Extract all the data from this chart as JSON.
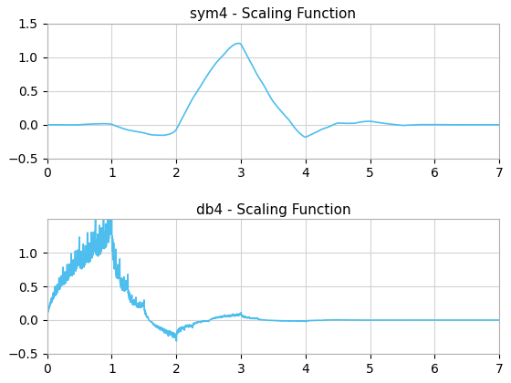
{
  "title1": "sym4 - Scaling Function",
  "title2": "db4 - Scaling Function",
  "xlim": [
    0,
    7
  ],
  "ylim1": [
    -0.5,
    1.5
  ],
  "ylim2": [
    -0.5,
    1.5
  ],
  "xticks": [
    0,
    1,
    2,
    3,
    4,
    5,
    6,
    7
  ],
  "yticks1": [
    -0.5,
    0.0,
    0.5,
    1.0,
    1.5
  ],
  "yticks2": [
    -0.5,
    0.0,
    0.5,
    1.0
  ],
  "line_color": "#4DBEEE",
  "line_width": 1.2,
  "bg_color": "#ffffff",
  "grid_color": "#d3d3d3",
  "title_fontsize": 11,
  "tick_fontsize": 10,
  "spine_color": "#b0b0b0"
}
